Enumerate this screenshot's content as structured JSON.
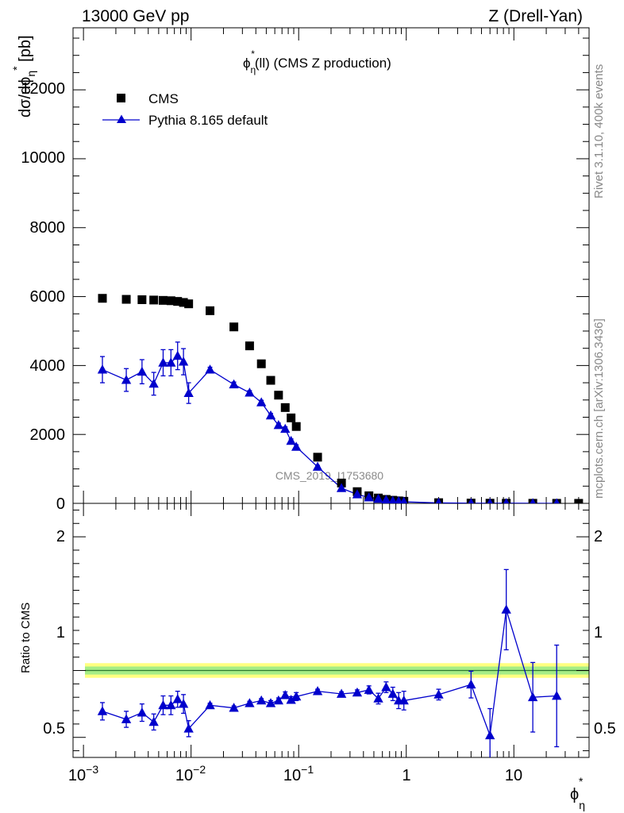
{
  "header": {
    "left": "13000 GeV pp",
    "right": "Z (Drell-Yan)"
  },
  "side_labels": {
    "rivet": "Rivet 3.1.10,  400k events",
    "mcplots": "mcplots.cern.ch [arXiv:1306.3436]"
  },
  "colors": {
    "data": "#000000",
    "mc": "#0000cc",
    "band_outer": "#ffff80",
    "band_inner": "#a6ed86"
  },
  "chart_data": [
    {
      "type": "scatter",
      "title": "ϕη*(ll) (CMS Z production)",
      "xlabel": "ϕη*",
      "ylabel": "dσ/dϕη* [pb]",
      "xscale": "log",
      "xlim": [
        0.0008,
        50
      ],
      "ylim": [
        0,
        13800
      ],
      "yticks": [
        "0",
        "2000",
        "4000",
        "6000",
        "8000",
        "10000",
        "12000"
      ],
      "legend_position": "top-left",
      "watermark": "CMS_2019_I1753680",
      "series": [
        {
          "name": "CMS",
          "marker": "square",
          "x": [
            0.0015,
            0.0025,
            0.0035,
            0.0045,
            0.0055,
            0.0065,
            0.0075,
            0.0085,
            0.0095,
            0.015,
            0.025,
            0.035,
            0.045,
            0.055,
            0.065,
            0.075,
            0.085,
            0.095,
            0.15,
            0.25,
            0.35,
            0.45,
            0.55,
            0.65,
            0.75,
            0.85,
            0.95,
            2,
            4,
            6,
            8.5,
            15,
            25,
            40
          ],
          "y": [
            5950,
            5920,
            5910,
            5900,
            5890,
            5880,
            5860,
            5830,
            5790,
            5590,
            5120,
            4570,
            4050,
            3570,
            3140,
            2780,
            2480,
            2230,
            1340,
            590,
            340,
            220,
            155,
            115,
            90,
            72,
            60,
            20,
            8,
            5,
            3,
            2,
            1,
            0.5
          ]
        },
        {
          "name": "Pythia 8.165 default",
          "marker": "triangle",
          "x": [
            0.0015,
            0.0025,
            0.0035,
            0.0045,
            0.0055,
            0.0065,
            0.0075,
            0.0085,
            0.0095,
            0.015,
            0.025,
            0.035,
            0.045,
            0.055,
            0.065,
            0.075,
            0.085,
            0.095,
            0.15,
            0.25,
            0.35,
            0.45,
            0.55,
            0.65,
            0.75,
            0.85,
            0.95,
            2,
            4,
            6,
            8.5,
            15,
            25
          ],
          "y": [
            3880,
            3580,
            3820,
            3470,
            4080,
            4080,
            4280,
            4110,
            3200,
            3880,
            3450,
            3210,
            2930,
            2550,
            2270,
            2160,
            1810,
            1640,
            1060,
            440,
            260,
            170,
            130,
            100,
            70,
            60,
            45,
            15,
            6,
            3,
            4,
            1.5,
            0.8
          ],
          "yerr": [
            380,
            330,
            350,
            330,
            380,
            380,
            400,
            380,
            300,
            70,
            70,
            60,
            60,
            60,
            60,
            60,
            60,
            60,
            40,
            20,
            15,
            12,
            10,
            8,
            7,
            6,
            5,
            2,
            1,
            1,
            1,
            0.5,
            0.3
          ]
        }
      ]
    },
    {
      "type": "line",
      "ylabel": "Ratio to CMS",
      "xscale": "log",
      "xlim": [
        0.0008,
        50
      ],
      "ylim": [
        0.35,
        2.25
      ],
      "yticks": [
        "0.5",
        "1",
        "2"
      ],
      "xticks": [
        "10^-3",
        "10^-2",
        "10^-1",
        "1",
        "10"
      ],
      "band": {
        "inner_half_width": 0.03,
        "outer_half_width": 0.055
      },
      "series": [
        {
          "name": "Pythia 8.165 default",
          "x": [
            0.0015,
            0.0025,
            0.0035,
            0.0045,
            0.0055,
            0.0065,
            0.0075,
            0.0085,
            0.0095,
            0.015,
            0.025,
            0.035,
            0.045,
            0.055,
            0.065,
            0.075,
            0.085,
            0.095,
            0.15,
            0.25,
            0.35,
            0.45,
            0.55,
            0.65,
            0.75,
            0.85,
            0.95,
            2,
            4,
            6,
            8.5,
            15,
            25
          ],
          "y": [
            0.695,
            0.635,
            0.685,
            0.615,
            0.74,
            0.74,
            0.785,
            0.75,
            0.565,
            0.74,
            0.72,
            0.755,
            0.775,
            0.755,
            0.775,
            0.815,
            0.78,
            0.805,
            0.845,
            0.825,
            0.835,
            0.855,
            0.79,
            0.875,
            0.825,
            0.775,
            0.775,
            0.82,
            0.895,
            0.515,
            1.455,
            0.8,
            0.81
          ],
          "yerr": [
            0.065,
            0.06,
            0.065,
            0.06,
            0.07,
            0.07,
            0.06,
            0.07,
            0.06,
            0.015,
            0.015,
            0.015,
            0.015,
            0.02,
            0.02,
            0.025,
            0.025,
            0.03,
            0.015,
            0.015,
            0.02,
            0.03,
            0.04,
            0.04,
            0.05,
            0.06,
            0.07,
            0.04,
            0.1,
            0.2,
            0.3,
            0.26,
            0.38
          ]
        }
      ]
    }
  ]
}
